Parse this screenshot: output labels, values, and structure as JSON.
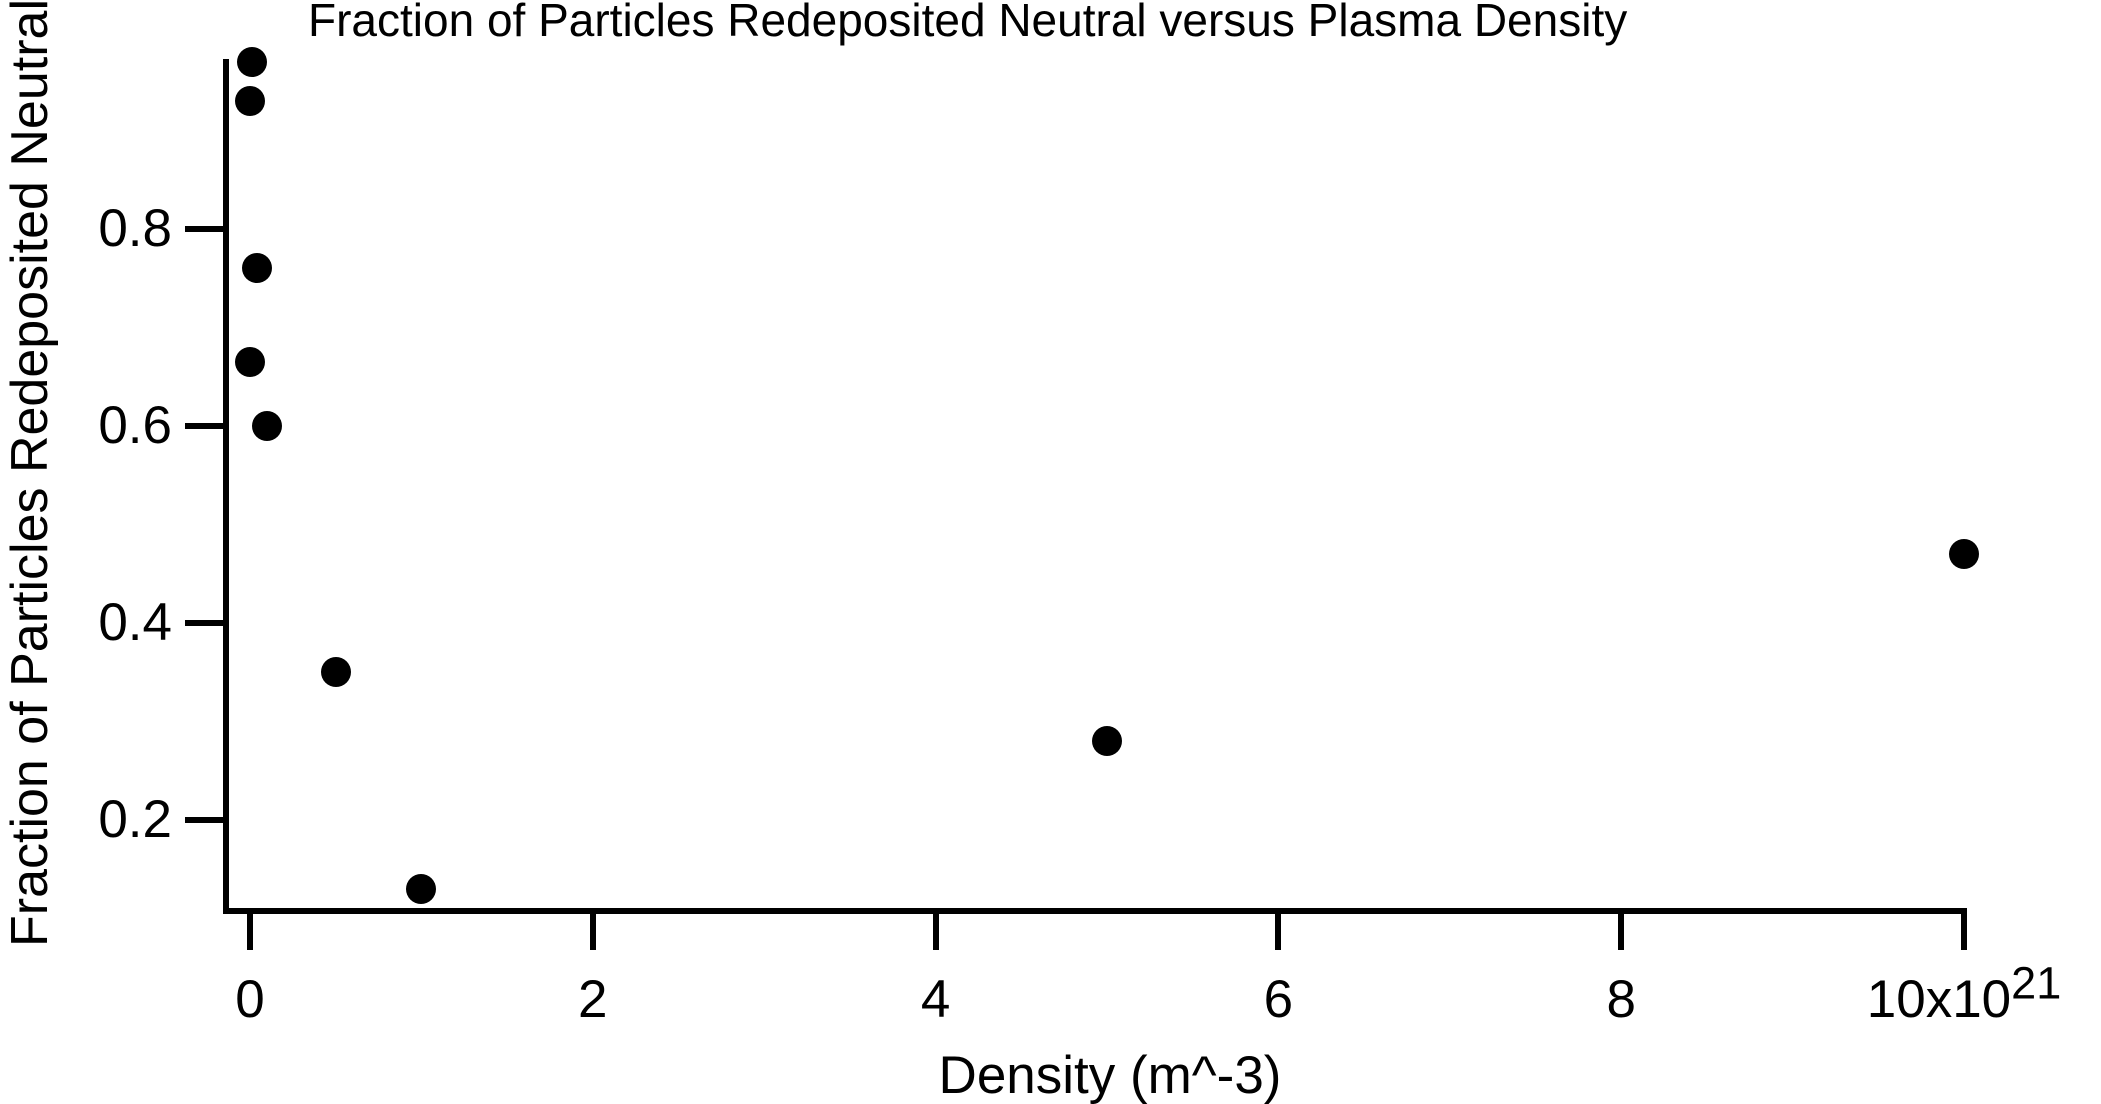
{
  "title": "Fraction of Particles Redeposited Neutral versus Plasma Density",
  "colors": {
    "background": "#ffffff",
    "axis": "#000000",
    "marker": "#000000",
    "text": "#000000"
  },
  "chart_data": {
    "type": "scatter",
    "title": "Fraction of Particles Redeposited Neutral versus Plasma Density",
    "xlabel": "Density (m^-3)",
    "ylabel": "Fraction of Particles Redeposited Neutral",
    "x_unit_note": "x values in units of 10^21 m^-3",
    "xlim": [
      -0.16,
      10
    ],
    "ylim": [
      0.108,
      0.971
    ],
    "grid": false,
    "legend": "none",
    "x_ticks": [
      {
        "value": 0,
        "label": "0"
      },
      {
        "value": 2,
        "label": "2"
      },
      {
        "value": 4,
        "label": "4"
      },
      {
        "value": 6,
        "label": "6"
      },
      {
        "value": 8,
        "label": "8"
      },
      {
        "value": 10,
        "label": "10x10^21"
      }
    ],
    "y_ticks": [
      {
        "value": 0.2,
        "label": "0.2"
      },
      {
        "value": 0.4,
        "label": "0.4"
      },
      {
        "value": 0.6,
        "label": "0.6"
      },
      {
        "value": 0.8,
        "label": "0.8"
      }
    ],
    "points": [
      {
        "x": 0.01,
        "y": 0.97
      },
      {
        "x": 0.0,
        "y": 0.93
      },
      {
        "x": 0.04,
        "y": 0.76
      },
      {
        "x": 0.0,
        "y": 0.665
      },
      {
        "x": 0.1,
        "y": 0.6
      },
      {
        "x": 0.5,
        "y": 0.35
      },
      {
        "x": 1.0,
        "y": 0.13
      },
      {
        "x": 5.0,
        "y": 0.28
      },
      {
        "x": 10.0,
        "y": 0.47
      }
    ]
  }
}
